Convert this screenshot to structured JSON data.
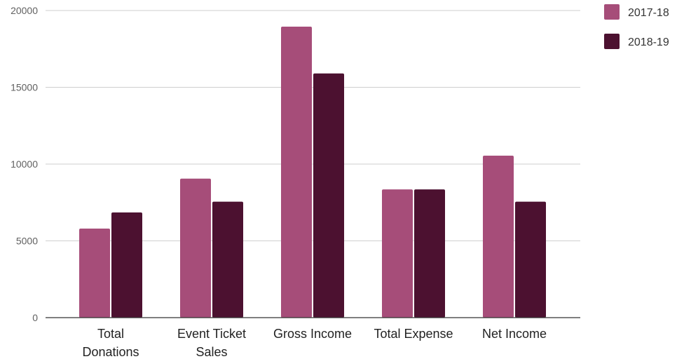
{
  "chart_data": {
    "type": "bar",
    "title": "",
    "xlabel": "",
    "ylabel": "",
    "categories": [
      [
        "Total",
        "Donations"
      ],
      [
        "Event Ticket",
        "Sales"
      ],
      [
        "Gross Income"
      ],
      [
        "Total Expense"
      ],
      [
        "Net Income"
      ]
    ],
    "series": [
      {
        "name": "2017-18",
        "color": "#a64d79",
        "values": [
          5800,
          9050,
          18950,
          8350,
          10550
        ]
      },
      {
        "name": "2018-19",
        "color": "#4c1130",
        "values": [
          6850,
          7550,
          15900,
          8350,
          7550
        ]
      }
    ],
    "ylim": [
      0,
      20000
    ],
    "yticks": [
      0,
      5000,
      10000,
      15000,
      20000
    ],
    "grid": true,
    "legend_position": "top-right"
  }
}
